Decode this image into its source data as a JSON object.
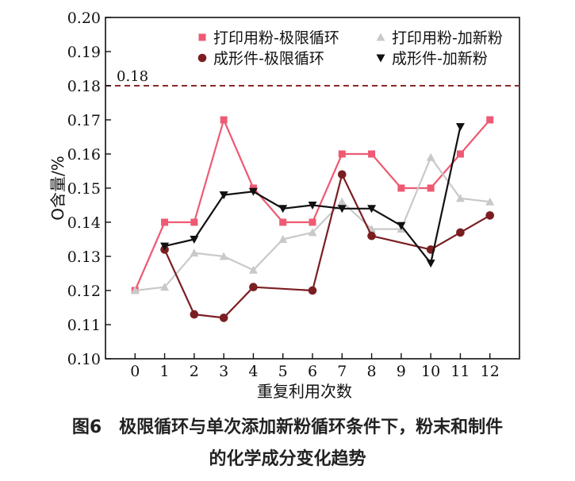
{
  "chart_data": {
    "type": "line",
    "xlabel": "重复利用次数",
    "ylabel": "O含量/%",
    "x": [
      0,
      1,
      2,
      3,
      4,
      5,
      6,
      7,
      8,
      9,
      10,
      11,
      12
    ],
    "xlim": [
      -1,
      13
    ],
    "ylim": [
      0.1,
      0.2
    ],
    "yticks": [
      "0.10",
      "0.11",
      "0.12",
      "0.13",
      "0.14",
      "0.15",
      "0.16",
      "0.17",
      "0.18",
      "0.19",
      "0.20"
    ],
    "grid": false,
    "legend_position": "top",
    "reference_line": {
      "label": "0.18",
      "value": 0.18,
      "color": "#8b2a2a"
    },
    "series": [
      {
        "name": "打印用粉-极限循环",
        "color": "#ee5a73",
        "marker": "square",
        "x": [
          0,
          1,
          2,
          3,
          4,
          5,
          6,
          7,
          8,
          9,
          10,
          11,
          12
        ],
        "values": [
          0.12,
          0.14,
          0.14,
          0.17,
          0.15,
          0.14,
          0.14,
          0.16,
          0.16,
          0.15,
          0.15,
          0.16,
          0.17
        ]
      },
      {
        "name": "打印用粉-加新粉",
        "color": "#c9c9c9",
        "marker": "triangle-up",
        "x": [
          0,
          1,
          2,
          3,
          4,
          5,
          6,
          7,
          8,
          9,
          10,
          11,
          12
        ],
        "values": [
          0.12,
          0.121,
          0.131,
          0.13,
          0.126,
          0.135,
          0.137,
          0.146,
          0.138,
          0.138,
          0.159,
          0.147,
          0.146
        ]
      },
      {
        "name": "成形件-极限循环",
        "color": "#7a1e22",
        "marker": "circle",
        "x": [
          1,
          2,
          3,
          4,
          6,
          7,
          8,
          10,
          11,
          12
        ],
        "values": [
          0.132,
          0.113,
          0.112,
          0.121,
          0.12,
          0.154,
          0.136,
          0.132,
          0.137,
          0.142
        ]
      },
      {
        "name": "成形件-加新粉",
        "color": "#111111",
        "marker": "triangle-down",
        "x": [
          1,
          2,
          3,
          4,
          5,
          6,
          7,
          8,
          9,
          10,
          11
        ],
        "values": [
          0.133,
          0.135,
          0.148,
          0.149,
          0.144,
          0.145,
          0.144,
          0.144,
          0.139,
          0.128,
          0.168
        ]
      }
    ]
  },
  "caption": {
    "line1": "图6　极限循环与单次添加新粉循环条件下，粉末和制件",
    "line2": "的化学成分变化趋势"
  }
}
